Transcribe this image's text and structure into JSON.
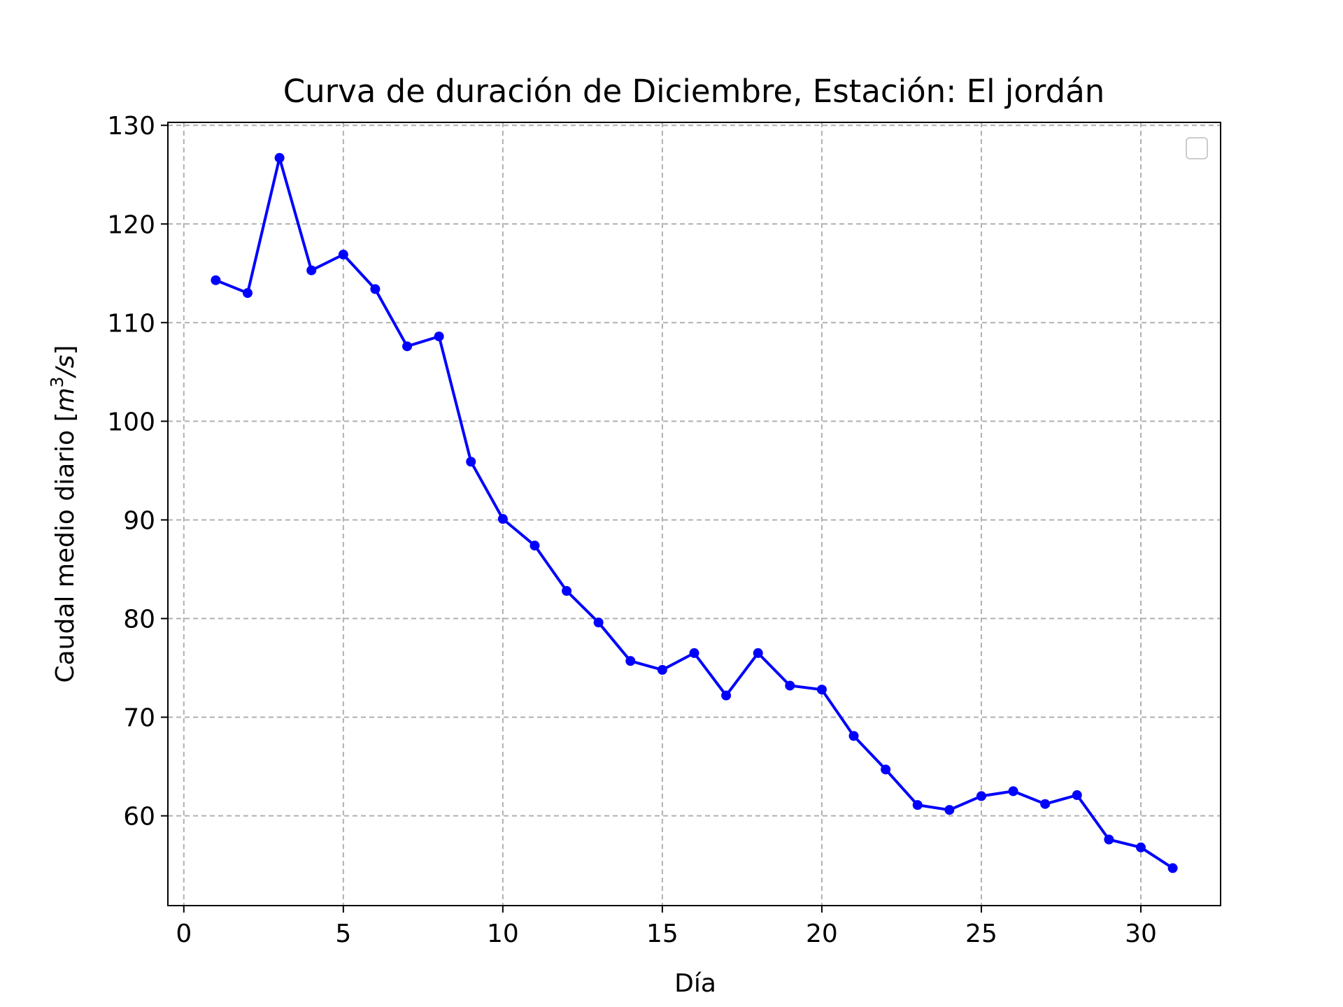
{
  "chart_data": {
    "type": "line",
    "title": "Curva de duración de Diciembre, Estación: El jordán",
    "xlabel": "Día",
    "ylabel_main": "Caudal medio diario [",
    "ylabel_unit_base": "m",
    "ylabel_unit_exp": "3",
    "ylabel_unit_rest": "/s",
    "ylabel_close": "]",
    "xlim": [
      -0.5,
      32.5
    ],
    "ylim": [
      50.9,
      130.3
    ],
    "xticks": [
      0,
      5,
      10,
      15,
      20,
      25,
      30
    ],
    "yticks": [
      60,
      70,
      80,
      90,
      100,
      110,
      120,
      130
    ],
    "grid": true,
    "legend": "top-right (empty)",
    "series": [
      {
        "color": "#0000ff",
        "x": [
          1,
          2,
          3,
          4,
          5,
          6,
          7,
          8,
          9,
          10,
          11,
          12,
          13,
          14,
          15,
          16,
          17,
          18,
          19,
          20,
          21,
          22,
          23,
          24,
          25,
          26,
          27,
          28,
          29,
          30,
          31
        ],
        "y": [
          114.3,
          113.0,
          126.7,
          115.3,
          116.9,
          113.4,
          107.6,
          108.6,
          95.9,
          90.1,
          87.4,
          82.8,
          79.6,
          75.7,
          74.8,
          76.5,
          72.2,
          76.5,
          73.2,
          72.8,
          68.1,
          64.7,
          61.1,
          60.6,
          62.0,
          62.5,
          61.2,
          62.1,
          57.6,
          56.8,
          54.7
        ]
      }
    ]
  }
}
